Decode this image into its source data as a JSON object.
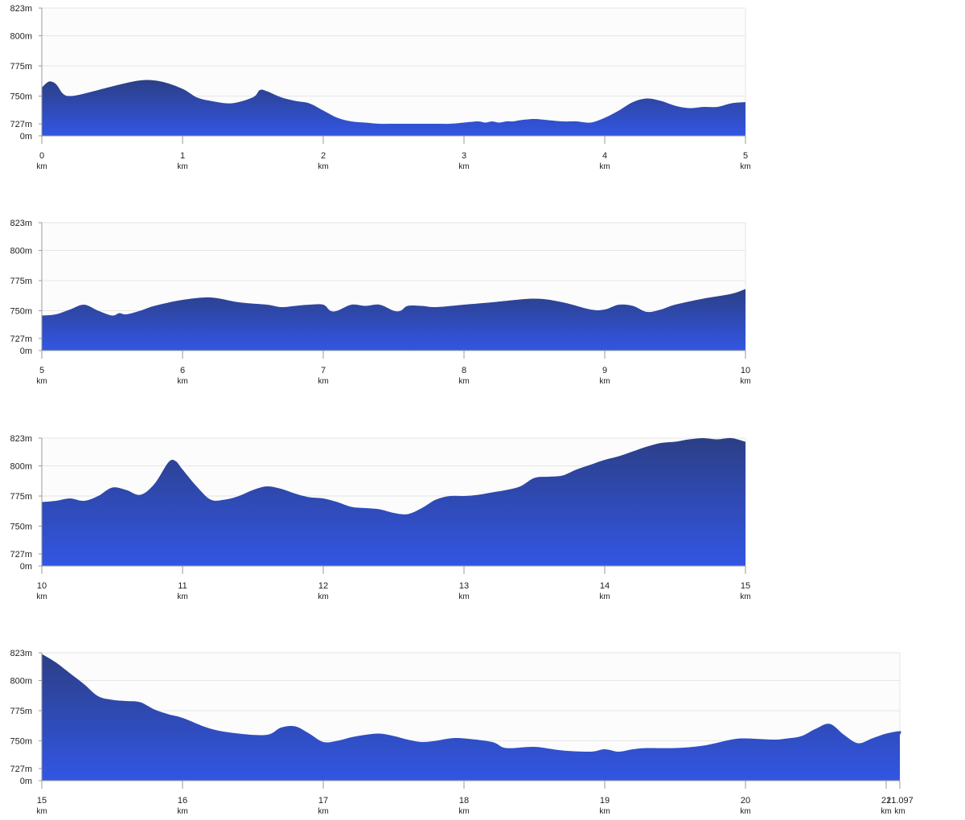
{
  "colors": {
    "area_top": "#2c3f86",
    "area_bottom": "#3256e4",
    "grid": "#e6e6e6",
    "plot_bg": "#fcfcfc",
    "axis": "#9a9a9a"
  },
  "y_ticks": [
    {
      "value": 823,
      "label": "823m"
    },
    {
      "value": 800,
      "label": "800m"
    },
    {
      "value": 775,
      "label": "775m"
    },
    {
      "value": 750,
      "label": "750m"
    },
    {
      "value": 727,
      "label": "727m"
    },
    {
      "value": 0,
      "label": "0m"
    }
  ],
  "chart_data": [
    {
      "type": "area",
      "x_unit": "km",
      "xlim": [
        0,
        5
      ],
      "ylim": [
        0,
        823
      ],
      "grid": true,
      "x_ticks": [
        "0",
        "1",
        "2",
        "3",
        "4",
        "5"
      ],
      "x": [
        0,
        0.05,
        0.1,
        0.15,
        0.2,
        0.3,
        0.5,
        0.7,
        0.85,
        1.0,
        1.1,
        1.2,
        1.35,
        1.5,
        1.55,
        1.6,
        1.7,
        1.8,
        1.9,
        2.0,
        2.1,
        2.2,
        2.3,
        2.4,
        2.5,
        2.6,
        2.7,
        2.8,
        2.9,
        3.0,
        3.1,
        3.15,
        3.2,
        3.25,
        3.3,
        3.35,
        3.4,
        3.5,
        3.6,
        3.7,
        3.8,
        3.9,
        4.0,
        4.1,
        4.2,
        4.3,
        4.4,
        4.5,
        4.6,
        4.7,
        4.8,
        4.9,
        5.0
      ],
      "y": [
        757,
        762,
        760,
        752,
        750,
        752,
        758,
        763,
        762,
        756,
        749,
        746,
        744,
        749,
        755,
        754,
        749,
        746,
        744,
        738,
        732,
        729,
        728,
        727,
        726,
        726,
        726,
        727,
        727,
        728,
        729,
        728,
        729,
        728,
        729,
        729,
        730,
        731,
        730,
        729,
        729,
        728,
        732,
        738,
        745,
        748,
        746,
        742,
        740,
        741,
        741,
        744,
        745
      ]
    },
    {
      "type": "area",
      "x_unit": "km",
      "xlim": [
        5,
        10
      ],
      "ylim": [
        0,
        823
      ],
      "grid": true,
      "x_ticks": [
        "5",
        "6",
        "7",
        "8",
        "9",
        "10"
      ],
      "x": [
        5,
        5.1,
        5.2,
        5.3,
        5.4,
        5.5,
        5.55,
        5.6,
        5.7,
        5.8,
        6.0,
        6.2,
        6.4,
        6.6,
        6.7,
        6.8,
        6.9,
        7.0,
        7.05,
        7.1,
        7.2,
        7.3,
        7.4,
        7.5,
        7.55,
        7.6,
        7.7,
        7.8,
        8.0,
        8.2,
        8.5,
        8.7,
        8.9,
        9.0,
        9.1,
        9.2,
        9.3,
        9.4,
        9.5,
        9.7,
        9.9,
        10.0
      ],
      "y": [
        746,
        747,
        751,
        755,
        750,
        746,
        748,
        747,
        750,
        754,
        759,
        761,
        757,
        755,
        753,
        754,
        755,
        755,
        750,
        750,
        755,
        754,
        755,
        750,
        750,
        754,
        754,
        753,
        755,
        757,
        760,
        757,
        751,
        751,
        755,
        754,
        749,
        751,
        755,
        760,
        764,
        768
      ]
    },
    {
      "type": "area",
      "x_unit": "km",
      "xlim": [
        10,
        15
      ],
      "ylim": [
        0,
        823
      ],
      "grid": true,
      "x_ticks": [
        "10",
        "11",
        "12",
        "13",
        "14",
        "15"
      ],
      "x": [
        10,
        10.1,
        10.2,
        10.3,
        10.4,
        10.5,
        10.6,
        10.7,
        10.8,
        10.9,
        10.95,
        11.0,
        11.1,
        11.2,
        11.3,
        11.4,
        11.5,
        11.6,
        11.7,
        11.8,
        11.9,
        12.0,
        12.1,
        12.2,
        12.3,
        12.4,
        12.5,
        12.6,
        12.7,
        12.8,
        12.9,
        13.0,
        13.1,
        13.2,
        13.3,
        13.4,
        13.5,
        13.6,
        13.7,
        13.8,
        13.9,
        14.0,
        14.1,
        14.2,
        14.3,
        14.4,
        14.5,
        14.6,
        14.7,
        14.8,
        14.9,
        15.0
      ],
      "y": [
        770,
        771,
        773,
        771,
        775,
        782,
        780,
        776,
        785,
        803,
        804,
        797,
        783,
        772,
        772,
        775,
        780,
        783,
        781,
        777,
        774,
        773,
        770,
        766,
        765,
        764,
        761,
        760,
        765,
        772,
        775,
        775,
        776,
        778,
        780,
        783,
        790,
        791,
        792,
        797,
        801,
        805,
        808,
        812,
        816,
        819,
        820,
        822,
        823,
        822,
        823,
        820
      ]
    },
    {
      "type": "area",
      "x_unit": "km",
      "xlim": [
        15,
        21.097
      ],
      "ylim": [
        0,
        823
      ],
      "grid": true,
      "x_ticks": [
        "15",
        "16",
        "17",
        "18",
        "19",
        "20",
        "21",
        "21.097"
      ],
      "x": [
        15,
        15.1,
        15.2,
        15.3,
        15.4,
        15.5,
        15.6,
        15.7,
        15.8,
        15.9,
        16.0,
        16.2,
        16.4,
        16.6,
        16.7,
        16.8,
        16.9,
        17.0,
        17.1,
        17.2,
        17.3,
        17.4,
        17.5,
        17.6,
        17.7,
        17.8,
        17.9,
        18.0,
        18.2,
        18.3,
        18.5,
        18.7,
        18.9,
        19.0,
        19.1,
        19.2,
        19.3,
        19.5,
        19.7,
        19.9,
        20.0,
        20.2,
        20.3,
        20.4,
        20.5,
        20.6,
        20.7,
        20.8,
        20.9,
        21.0,
        21.1,
        21.097
      ],
      "y": [
        822,
        815,
        806,
        797,
        787,
        784,
        783,
        782,
        776,
        772,
        769,
        760,
        756,
        755,
        761,
        762,
        756,
        749,
        750,
        753,
        755,
        756,
        754,
        751,
        749,
        750,
        752,
        752,
        749,
        744,
        745,
        742,
        741,
        743,
        741,
        743,
        744,
        744,
        746,
        751,
        752,
        751,
        752,
        754,
        760,
        764,
        755,
        748,
        752,
        756,
        758,
        755
      ]
    }
  ]
}
